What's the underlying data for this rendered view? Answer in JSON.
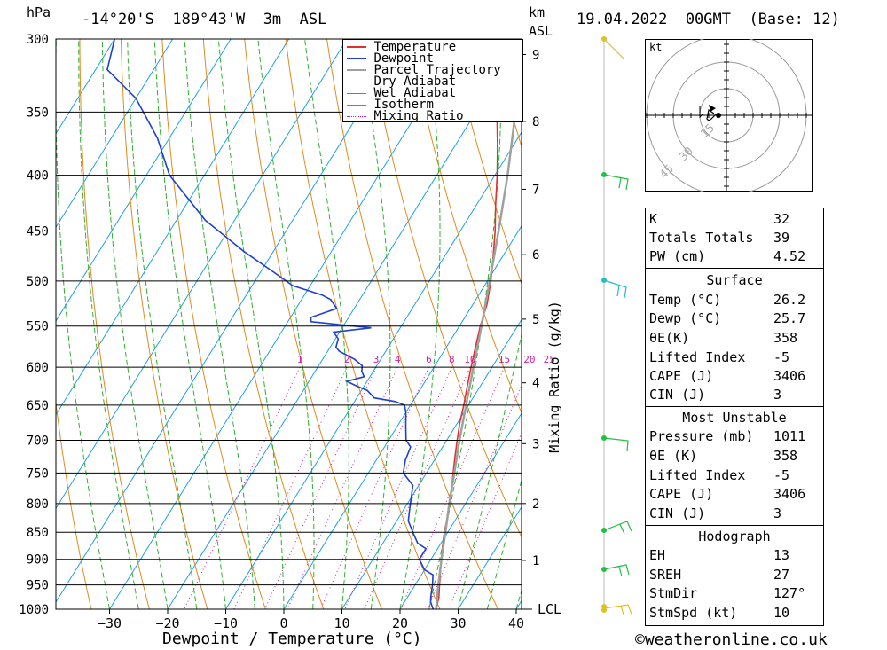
{
  "header": {
    "location": "-14°20'S  189°43'W  3m  ASL",
    "datetime": "19.04.2022  00GMT  (Base: 12)",
    "hpa_label": "hPa",
    "km_label": "km",
    "asl_label": "ASL"
  },
  "chart_data": {
    "type": "line",
    "title": "",
    "xlabel": "Dewpoint / Temperature (°C)",
    "ylabel": "hPa",
    "y2label": "Mixing Ratio (g/kg)",
    "x_ticks": [
      -30,
      -20,
      -10,
      0,
      10,
      20,
      30,
      40
    ],
    "y_ticks": [
      300,
      350,
      400,
      450,
      500,
      550,
      600,
      650,
      700,
      750,
      800,
      850,
      900,
      950,
      1000
    ],
    "km_ticks": [
      {
        "km": "1",
        "p": 902
      },
      {
        "km": "2",
        "p": 800
      },
      {
        "km": "3",
        "p": 705
      },
      {
        "km": "4",
        "p": 620
      },
      {
        "km": "5",
        "p": 542
      },
      {
        "km": "6",
        "p": 473
      },
      {
        "km": "7",
        "p": 412
      },
      {
        "km": "8",
        "p": 357
      },
      {
        "km": "9",
        "p": 310
      }
    ],
    "lcl_label": "LCL",
    "mixing_ratio_labels": [
      "1",
      "2",
      "3",
      "4",
      "6",
      "8",
      "10",
      "15",
      "20",
      "25"
    ],
    "legend": [
      "Temperature",
      "Dewpoint",
      "Parcel Trajectory",
      "Dry Adiabat",
      "Wet Adiabat",
      "Isotherm",
      "Mixing Ratio"
    ],
    "legend_position": "top-right",
    "colors": {
      "temperature": "#e03030",
      "dewpoint": "#2040d0",
      "parcel": "#a0a0a0",
      "dry_adiabat": "#e08a20",
      "wet_adiabat": "#30b030",
      "isotherm": "#20a0e0",
      "mixing_ratio": "#d020a0"
    },
    "series": [
      {
        "name": "Temperature",
        "points": [
          [
            1000,
            26.2
          ],
          [
            975,
            25.4
          ],
          [
            950,
            24.2
          ],
          [
            925,
            23.0
          ],
          [
            900,
            21.8
          ],
          [
            875,
            20.6
          ],
          [
            850,
            19.4
          ],
          [
            825,
            18.4
          ],
          [
            800,
            17.2
          ],
          [
            775,
            16.0
          ],
          [
            750,
            14.6
          ],
          [
            725,
            13.2
          ],
          [
            700,
            11.8
          ],
          [
            675,
            10.4
          ],
          [
            650,
            9.2
          ],
          [
            625,
            7.8
          ],
          [
            600,
            6.4
          ],
          [
            575,
            5.0
          ],
          [
            550,
            3.6
          ],
          [
            525,
            2.4
          ],
          [
            500,
            0.6
          ],
          [
            475,
            -1.6
          ],
          [
            450,
            -4.0
          ],
          [
            425,
            -6.8
          ],
          [
            400,
            -9.6
          ],
          [
            375,
            -12.8
          ],
          [
            350,
            -16.4
          ],
          [
            325,
            -20.4
          ],
          [
            300,
            -25.0
          ]
        ]
      },
      {
        "name": "Dewpoint",
        "points": [
          [
            1000,
            25.7
          ],
          [
            985,
            24.5
          ],
          [
            975,
            24.0
          ],
          [
            950,
            23.0
          ],
          [
            930,
            22.0
          ],
          [
            920,
            20.0
          ],
          [
            900,
            18.0
          ],
          [
            880,
            18.0
          ],
          [
            870,
            16.0
          ],
          [
            860,
            15.0
          ],
          [
            850,
            14.0
          ],
          [
            830,
            12.0
          ],
          [
            810,
            11.0
          ],
          [
            790,
            10.0
          ],
          [
            770,
            9.0
          ],
          [
            750,
            6.0
          ],
          [
            730,
            5.0
          ],
          [
            710,
            4.5
          ],
          [
            700,
            3.0
          ],
          [
            680,
            1.5
          ],
          [
            660,
            0.0
          ],
          [
            650,
            -1.0
          ],
          [
            645,
            -3.0
          ],
          [
            640,
            -7.0
          ],
          [
            630,
            -9.0
          ],
          [
            625,
            -11.0
          ],
          [
            618,
            -13.5
          ],
          [
            612,
            -11.0
          ],
          [
            605,
            -12.0
          ],
          [
            598,
            -12.5
          ],
          [
            590,
            -14.5
          ],
          [
            580,
            -18.0
          ],
          [
            575,
            -19.0
          ],
          [
            565,
            -19.5
          ],
          [
            557,
            -21.0
          ],
          [
            552,
            -15.0
          ],
          [
            545,
            -26.0
          ],
          [
            540,
            -26.5
          ],
          [
            530,
            -23.0
          ],
          [
            520,
            -25.0
          ],
          [
            515,
            -27.0
          ],
          [
            505,
            -33.0
          ],
          [
            490,
            -38.0
          ],
          [
            470,
            -45.0
          ],
          [
            440,
            -55.0
          ],
          [
            400,
            -66.0
          ],
          [
            370,
            -72.0
          ],
          [
            340,
            -80.0
          ],
          [
            320,
            -88.0
          ],
          [
            300,
            -90.0
          ]
        ]
      },
      {
        "name": "Parcel Trajectory",
        "points": [
          [
            1000,
            26.2
          ],
          [
            950,
            24.0
          ],
          [
            900,
            21.8
          ],
          [
            850,
            19.6
          ],
          [
            800,
            17.2
          ],
          [
            750,
            14.8
          ],
          [
            700,
            12.2
          ],
          [
            650,
            9.6
          ],
          [
            600,
            6.8
          ],
          [
            550,
            3.8
          ],
          [
            500,
            0.4
          ],
          [
            450,
            -3.4
          ],
          [
            400,
            -7.8
          ],
          [
            350,
            -13.2
          ],
          [
            300,
            -20.0
          ]
        ]
      }
    ]
  },
  "footer": {
    "copyright": "©weatheronline.co.uk"
  },
  "hodograph": {
    "unit": "kt",
    "ring_labels": [
      "15",
      "30",
      "45"
    ]
  },
  "wind_profile": {
    "barb_color_low": "#e0c020",
    "barb_color_mid": "#20c040",
    "barb_color_high": "#20c0c0"
  },
  "indices": {
    "k_label": "K",
    "k_value": "32",
    "tt_label": "Totals Totals",
    "tt_value": "39",
    "pw_label": "PW (cm)",
    "pw_value": "4.52"
  },
  "surface": {
    "title": "Surface",
    "temp_label": "Temp (°C)",
    "temp_value": "26.2",
    "dewp_label": "Dewp (°C)",
    "dewp_value": "25.7",
    "theta_label": "θE(K)",
    "theta_value": "358",
    "li_label": "Lifted Index",
    "li_value": "-5",
    "cape_label": "CAPE (J)",
    "cape_value": "3406",
    "cin_label": "CIN (J)",
    "cin_value": "3"
  },
  "most_unstable": {
    "title": "Most Unstable",
    "pressure_label": "Pressure (mb)",
    "pressure_value": "1011",
    "theta_label": "θE (K)",
    "theta_value": "358",
    "li_label": "Lifted Index",
    "li_value": "-5",
    "cape_label": "CAPE (J)",
    "cape_value": "3406",
    "cin_label": "CIN (J)",
    "cin_value": "3"
  },
  "hodograph_table": {
    "title": "Hodograph",
    "eh_label": "EH",
    "eh_value": "13",
    "sreh_label": "SREH",
    "sreh_value": "27",
    "stmdir_label": "StmDir",
    "stmdir_value": "127°",
    "stmspd_label": "StmSpd (kt)",
    "stmspd_value": "10"
  }
}
